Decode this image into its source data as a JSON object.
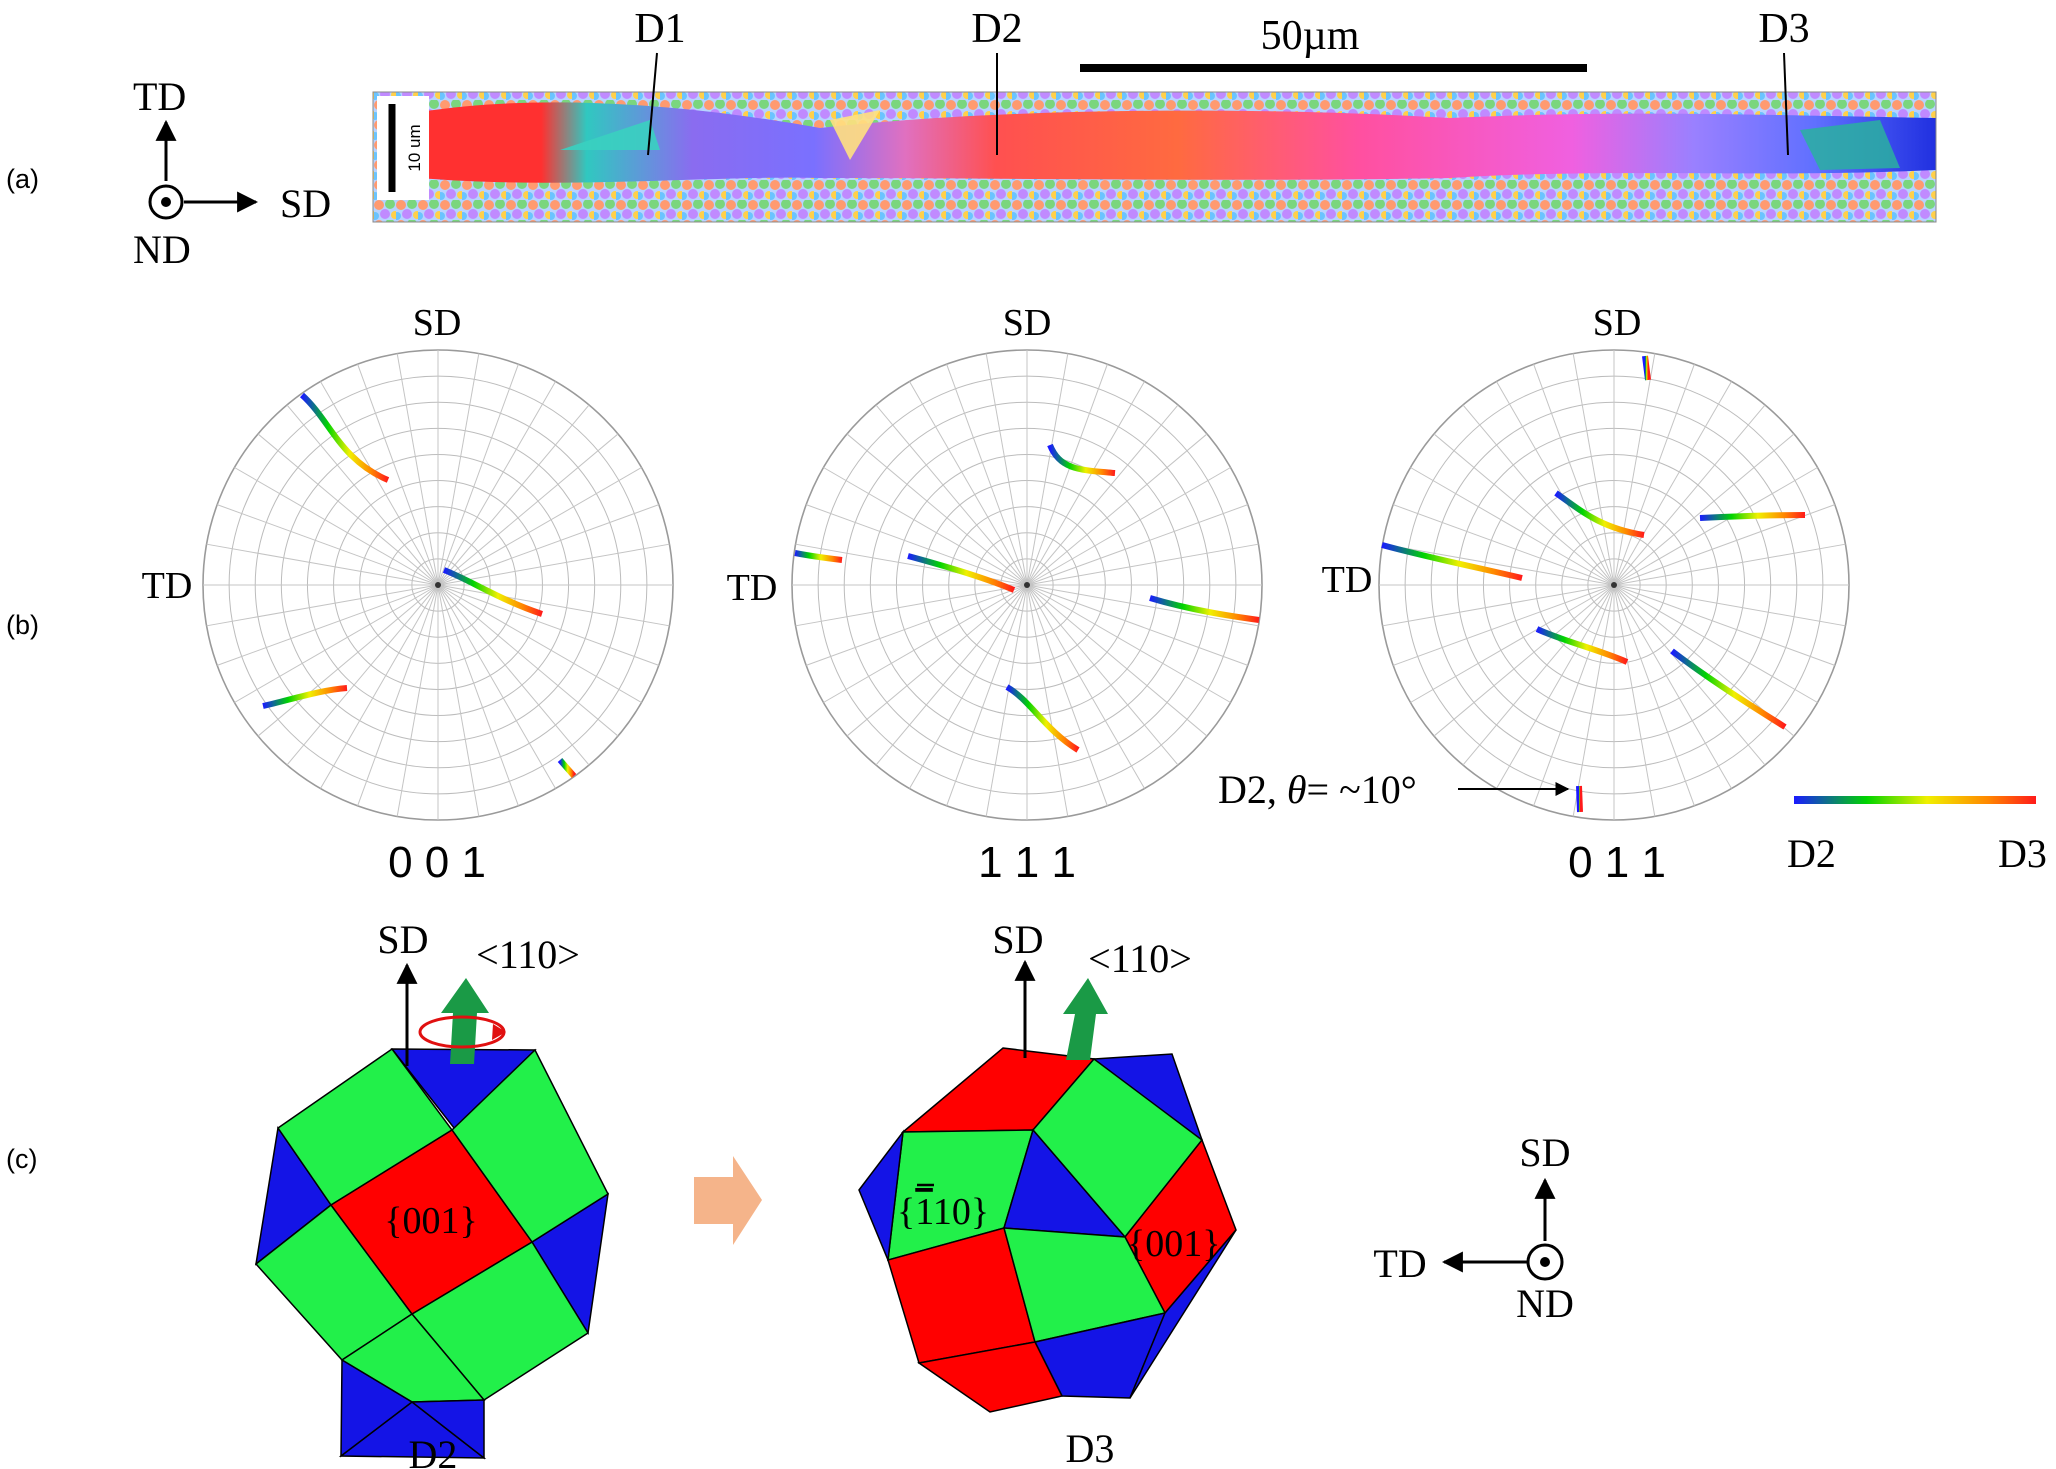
{
  "panels": {
    "a": "(a)",
    "b": "(b)",
    "c": "(c)"
  },
  "axes": {
    "sd": "SD",
    "td": "TD",
    "nd": "ND"
  },
  "ebsd_map": {
    "scale_bar_label": "50µm",
    "inner_scale_label": "10 um",
    "markers": [
      "D1",
      "D2",
      "D3"
    ]
  },
  "pole_figures": [
    {
      "label": "0 0 1",
      "sd": "SD",
      "td": "TD"
    },
    {
      "label": "1 1 1",
      "sd": "SD",
      "td": "TD"
    },
    {
      "label": "0 1 1",
      "sd": "SD",
      "td": "TD"
    }
  ],
  "annotation": {
    "prefix": "D2, ",
    "theta": "θ",
    "value": "= ~10°"
  },
  "colorbar": {
    "low": "D2",
    "high": "D3",
    "colors": [
      "#1a1aff",
      "#00d400",
      "#f0f000",
      "#ff8800",
      "#ff1a1a"
    ]
  },
  "crystals": [
    {
      "name": "D2",
      "sd": "SD",
      "direction": "<110>",
      "plane_center": "{001}"
    },
    {
      "name": "D3",
      "sd": "SD",
      "direction": "<110>",
      "plane_left_brace": "{",
      "plane_left_bar": "1",
      "plane_left_rest": "10}",
      "plane_right": "{001}"
    }
  ],
  "face_colors": {
    "red": "#ff0000",
    "green": "#22f04a",
    "blue": "#1414e6",
    "arrow_green": "#1a9a46",
    "rotation_red": "#e01010",
    "transition_arrow": "#f5b48a"
  }
}
